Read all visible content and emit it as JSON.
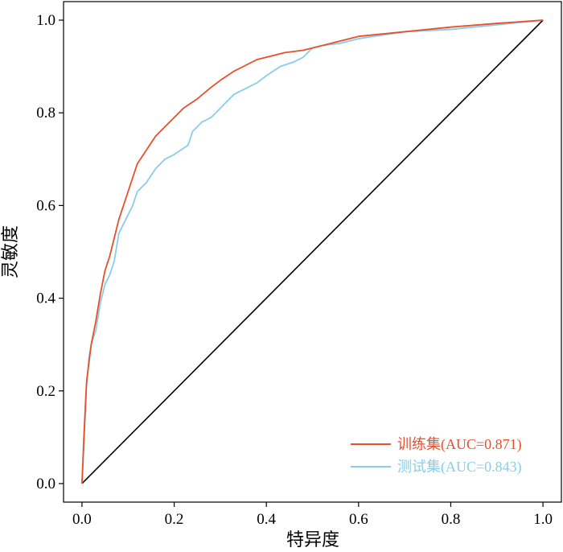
{
  "chart_data": {
    "type": "line",
    "xlabel": "特异度",
    "ylabel": "灵敏度",
    "xlim": [
      -0.04,
      1.04
    ],
    "ylim": [
      -0.04,
      1.04
    ],
    "x_ticks": [
      "0.0",
      "0.2",
      "0.4",
      "0.6",
      "0.8",
      "1.0"
    ],
    "y_ticks": [
      "0.0",
      "0.2",
      "0.4",
      "0.6",
      "0.8",
      "1.0"
    ],
    "grid": false,
    "legend_position": "bottom-right",
    "reference_line": {
      "x": [
        0,
        1
      ],
      "y": [
        0,
        1
      ],
      "color": "#000000"
    },
    "series": [
      {
        "name": "训练集(AUC=0.871)",
        "color": "#E8502A",
        "x": [
          0.0,
          0.005,
          0.01,
          0.015,
          0.02,
          0.03,
          0.04,
          0.05,
          0.06,
          0.07,
          0.08,
          0.09,
          0.1,
          0.11,
          0.12,
          0.14,
          0.16,
          0.18,
          0.2,
          0.22,
          0.25,
          0.28,
          0.3,
          0.33,
          0.36,
          0.38,
          0.4,
          0.44,
          0.48,
          0.5,
          0.52,
          0.56,
          0.6,
          0.65,
          0.7,
          0.8,
          0.9,
          1.0
        ],
        "y": [
          0.0,
          0.12,
          0.22,
          0.26,
          0.3,
          0.35,
          0.41,
          0.46,
          0.49,
          0.53,
          0.57,
          0.6,
          0.63,
          0.66,
          0.69,
          0.72,
          0.75,
          0.77,
          0.79,
          0.81,
          0.83,
          0.855,
          0.87,
          0.89,
          0.905,
          0.915,
          0.92,
          0.93,
          0.935,
          0.94,
          0.945,
          0.955,
          0.965,
          0.97,
          0.975,
          0.985,
          0.993,
          1.0
        ]
      },
      {
        "name": "测试集(AUC=0.843)",
        "color": "#87CEEB",
        "x": [
          0.0,
          0.005,
          0.01,
          0.015,
          0.02,
          0.03,
          0.04,
          0.05,
          0.06,
          0.07,
          0.08,
          0.09,
          0.1,
          0.11,
          0.12,
          0.14,
          0.16,
          0.18,
          0.2,
          0.23,
          0.24,
          0.26,
          0.28,
          0.3,
          0.33,
          0.36,
          0.38,
          0.4,
          0.43,
          0.46,
          0.48,
          0.5,
          0.52,
          0.56,
          0.6,
          0.7,
          0.8,
          0.9,
          1.0
        ],
        "y": [
          0.0,
          0.1,
          0.21,
          0.27,
          0.3,
          0.33,
          0.39,
          0.43,
          0.45,
          0.48,
          0.54,
          0.56,
          0.58,
          0.6,
          0.63,
          0.65,
          0.68,
          0.7,
          0.71,
          0.73,
          0.76,
          0.78,
          0.79,
          0.81,
          0.84,
          0.855,
          0.865,
          0.88,
          0.9,
          0.91,
          0.92,
          0.94,
          0.945,
          0.95,
          0.96,
          0.975,
          0.98,
          0.99,
          1.0
        ]
      }
    ]
  }
}
